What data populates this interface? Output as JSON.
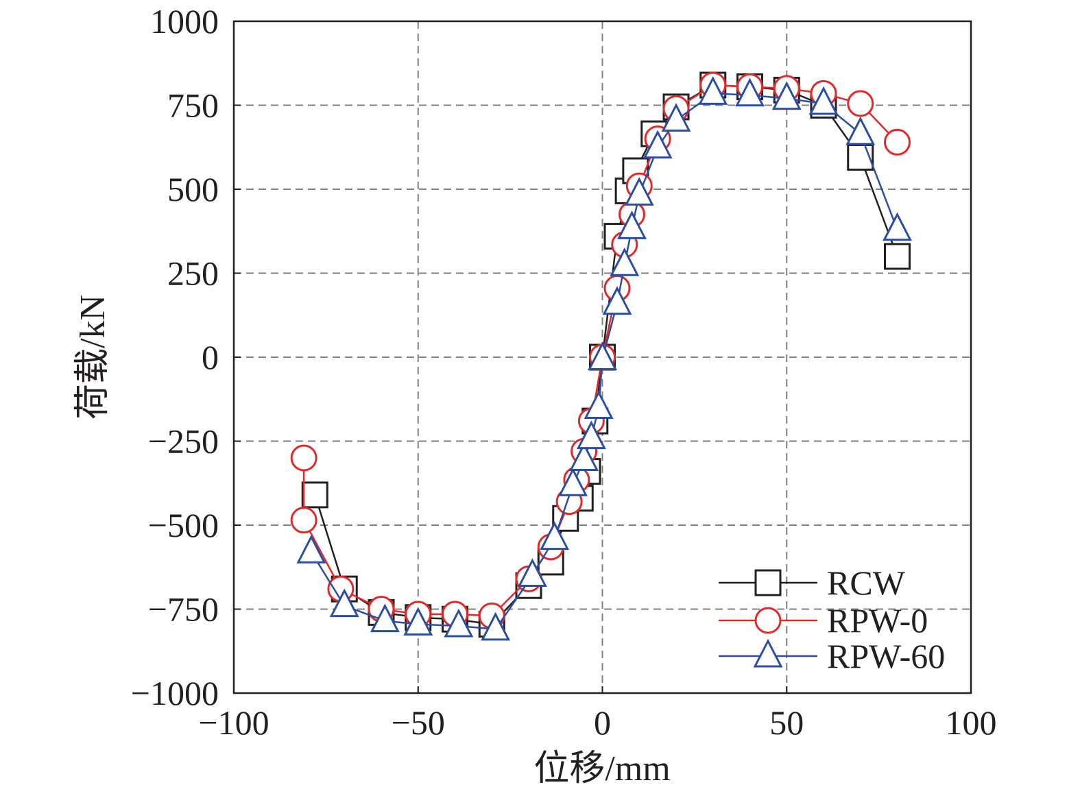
{
  "chart_data": {
    "type": "line",
    "xlabel": "位移/mm",
    "ylabel": "荷载/kN",
    "xlim": [
      -100,
      100
    ],
    "ylim": [
      -1000,
      1000
    ],
    "xticks": [
      -100,
      -50,
      0,
      50,
      100
    ],
    "yticks": [
      1000,
      750,
      500,
      250,
      0,
      -250,
      -500,
      -750,
      -1000
    ],
    "xtick_labels": [
      "−100",
      "−50",
      "0",
      "50",
      "100"
    ],
    "ytick_labels": [
      "1000",
      "750",
      "500",
      "250",
      "0",
      "−250",
      "−500",
      "−750",
      "−1000"
    ],
    "grid": true,
    "legend_position": "bottom-right",
    "series": [
      {
        "name": "RCW",
        "color": "#231f20",
        "marker": "square",
        "points": [
          [
            -78,
            -410
          ],
          [
            -70,
            -690
          ],
          [
            -60,
            -760
          ],
          [
            -50,
            -775
          ],
          [
            -40,
            -780
          ],
          [
            -30,
            -795
          ],
          [
            -20,
            -680
          ],
          [
            -14,
            -610
          ],
          [
            -10,
            -480
          ],
          [
            -6,
            -420
          ],
          [
            -4,
            -340
          ],
          [
            -2,
            -190
          ],
          [
            0,
            0
          ],
          [
            4,
            360
          ],
          [
            7,
            495
          ],
          [
            9,
            555
          ],
          [
            14,
            665
          ],
          [
            20,
            745
          ],
          [
            30,
            810
          ],
          [
            40,
            805
          ],
          [
            50,
            795
          ],
          [
            60,
            750
          ],
          [
            70,
            595
          ],
          [
            80,
            300
          ]
        ]
      },
      {
        "name": "RPW-0",
        "color": "#e02a2a",
        "marker": "circle",
        "points": [
          [
            -81,
            -300
          ],
          [
            -81,
            -485
          ],
          [
            -71,
            -690
          ],
          [
            -60,
            -750
          ],
          [
            -50,
            -765
          ],
          [
            -40,
            -765
          ],
          [
            -30,
            -770
          ],
          [
            -20,
            -660
          ],
          [
            -14,
            -565
          ],
          [
            -9,
            -430
          ],
          [
            -7,
            -365
          ],
          [
            -5,
            -280
          ],
          [
            -3,
            -190
          ],
          [
            0,
            0
          ],
          [
            4,
            205
          ],
          [
            6,
            335
          ],
          [
            8,
            425
          ],
          [
            10,
            510
          ],
          [
            15,
            650
          ],
          [
            20,
            740
          ],
          [
            30,
            810
          ],
          [
            40,
            805
          ],
          [
            50,
            800
          ],
          [
            60,
            785
          ],
          [
            70,
            755
          ],
          [
            80,
            640
          ]
        ]
      },
      {
        "name": "RPW-60",
        "color": "#2b4ea1",
        "marker": "triangle",
        "points": [
          [
            -79,
            -580
          ],
          [
            -70,
            -740
          ],
          [
            -59,
            -785
          ],
          [
            -50,
            -795
          ],
          [
            -39,
            -800
          ],
          [
            -29,
            -810
          ],
          [
            -19,
            -650
          ],
          [
            -13,
            -540
          ],
          [
            -8,
            -380
          ],
          [
            -5,
            -305
          ],
          [
            -3,
            -240
          ],
          [
            -1,
            -150
          ],
          [
            0,
            -5
          ],
          [
            4,
            160
          ],
          [
            6,
            275
          ],
          [
            8,
            385
          ],
          [
            10,
            485
          ],
          [
            15,
            625
          ],
          [
            20,
            705
          ],
          [
            30,
            785
          ],
          [
            40,
            780
          ],
          [
            50,
            770
          ],
          [
            60,
            755
          ],
          [
            70,
            665
          ],
          [
            80,
            380
          ]
        ]
      }
    ]
  }
}
